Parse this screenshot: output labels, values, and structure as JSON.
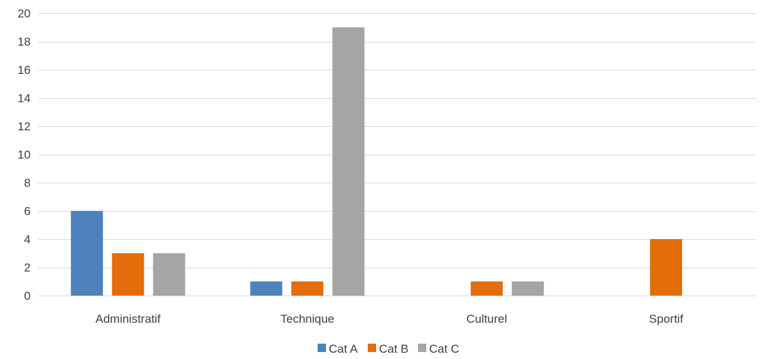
{
  "chart_data": {
    "type": "bar",
    "title": "",
    "xlabel": "",
    "ylabel": "",
    "categories": [
      "Administratif",
      "Technique",
      "Culturel",
      "Sportif"
    ],
    "series": [
      {
        "name": "Cat A",
        "color": "#4f81bd",
        "values": [
          6,
          1,
          0,
          0
        ]
      },
      {
        "name": "Cat B",
        "color": "#e46c0a",
        "values": [
          3,
          1,
          1,
          4
        ]
      },
      {
        "name": "Cat C",
        "color": "#a5a5a5",
        "values": [
          3,
          19,
          1,
          0
        ]
      }
    ],
    "ylim": [
      0,
      20
    ],
    "yticks": [
      0,
      2,
      4,
      6,
      8,
      10,
      12,
      14,
      16,
      18,
      20
    ],
    "grid": true,
    "gridline_color": "#d9d9d9",
    "legend_position": "bottom"
  }
}
